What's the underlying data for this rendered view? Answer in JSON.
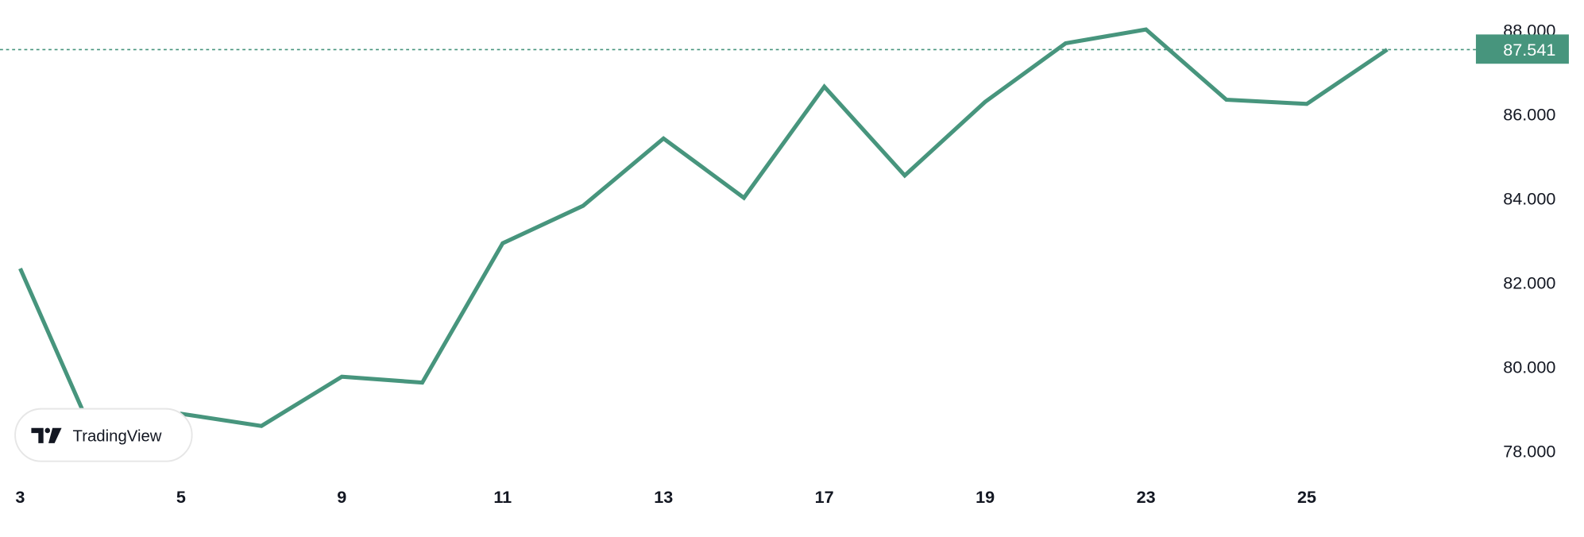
{
  "chart_data": {
    "type": "line",
    "x": [
      "3",
      "4",
      "5",
      "6",
      "9",
      "10",
      "11",
      "12",
      "13",
      "16",
      "17",
      "18",
      "19",
      "20",
      "23",
      "24",
      "25",
      "26"
    ],
    "values": [
      82.34,
      78.0,
      78.89,
      78.6,
      79.77,
      79.63,
      82.94,
      83.83,
      85.43,
      84.02,
      86.66,
      84.55,
      86.3,
      87.69,
      88.02,
      86.35,
      86.25,
      87.541
    ],
    "x_tick_labels": [
      "3",
      "5",
      "9",
      "11",
      "13",
      "17",
      "19",
      "23",
      "25"
    ],
    "y_tick_labels": [
      "88.000",
      "86.000",
      "84.000",
      "82.000",
      "80.000",
      "78.000"
    ],
    "y_ticks": [
      88,
      86,
      84,
      82,
      80,
      78
    ],
    "ylim": [
      77.2,
      88.7
    ],
    "last_value": 87.541,
    "last_value_label": "87.541",
    "grid": false,
    "y_axis_position": "right",
    "line_color": "#47957d",
    "title": "",
    "xlabel": "",
    "ylabel": ""
  },
  "watermark": {
    "text": "TradingView"
  }
}
